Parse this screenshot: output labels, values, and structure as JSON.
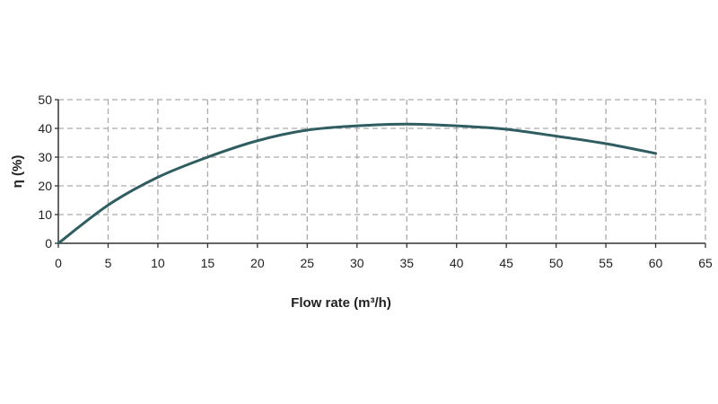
{
  "chart_data": {
    "type": "line",
    "title": "",
    "xlabel": "Flow rate (m³/h)",
    "ylabel": "η (%)",
    "xlim": [
      0,
      65
    ],
    "ylim": [
      0,
      50
    ],
    "xticks": [
      0,
      5,
      10,
      15,
      20,
      25,
      30,
      35,
      40,
      45,
      50,
      55,
      60,
      65
    ],
    "yticks": [
      0,
      10,
      20,
      30,
      40,
      50
    ],
    "grid": true,
    "grid_style": "dashed",
    "line_color": "#2f5d62",
    "series": [
      {
        "x": [
          0,
          5,
          10,
          15,
          20,
          25,
          30,
          35,
          40,
          45,
          50,
          55,
          60
        ],
        "y": [
          0,
          13.3,
          23,
          30,
          35.7,
          39.4,
          40.9,
          41.5,
          40.9,
          39.7,
          37.3,
          34.7,
          31.3
        ]
      }
    ]
  }
}
